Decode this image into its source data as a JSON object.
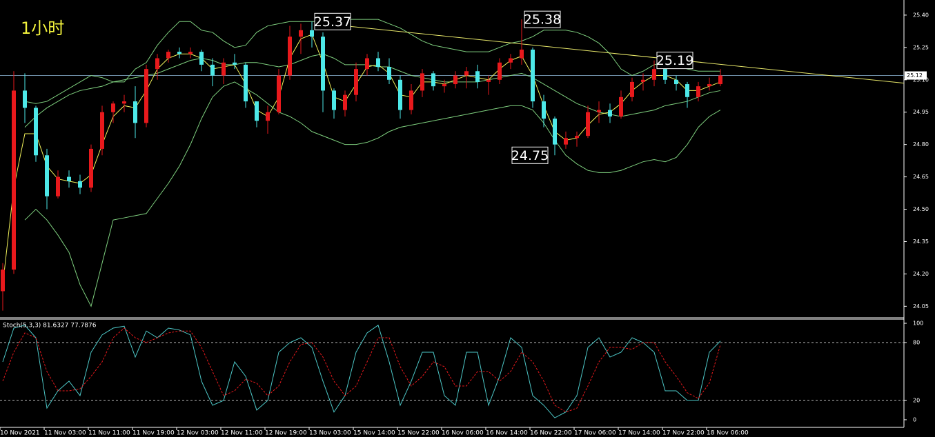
{
  "chart_data": {
    "type": "candlestick",
    "title": "1小时",
    "categories": [
      "10 Nov 2021",
      null,
      null,
      null,
      "11 Nov 03:00",
      null,
      null,
      null,
      "11 Nov 11:00",
      null,
      null,
      null,
      "11 Nov 19:00",
      null,
      null,
      null,
      "12 Nov 03:00",
      null,
      null,
      null,
      "12 Nov 11:00",
      null,
      null,
      null,
      "12 Nov 19:00",
      null,
      null,
      null,
      "13 Nov 03:00",
      null,
      null,
      null,
      "15 Nov 14:00",
      null,
      null,
      null,
      "15 Nov 22:00",
      null,
      null,
      null,
      "16 Nov 06:00",
      null,
      null,
      null,
      "16 Nov 14:00",
      null,
      null,
      null,
      "16 Nov 22:00",
      null,
      null,
      null,
      "17 Nov 06:00",
      null,
      null,
      null,
      "17 Nov 14:00",
      null,
      null,
      null,
      "17 Nov 22:00",
      null,
      null,
      null,
      "18 Nov 06:00",
      null
    ],
    "candles": [
      [
        24.12,
        24.25,
        24.03,
        24.22
      ],
      [
        24.22,
        25.14,
        24.2,
        25.05
      ],
      [
        25.05,
        25.13,
        24.9,
        24.97
      ],
      [
        24.97,
        24.98,
        24.72,
        24.75
      ],
      [
        24.75,
        24.78,
        24.5,
        24.56
      ],
      [
        24.56,
        24.68,
        24.55,
        24.65
      ],
      [
        24.65,
        24.68,
        24.6,
        24.63
      ],
      [
        24.63,
        24.66,
        24.57,
        24.6
      ],
      [
        24.6,
        24.8,
        24.58,
        24.78
      ],
      [
        24.78,
        24.98,
        24.75,
        24.95
      ],
      [
        24.95,
        25.0,
        24.9,
        24.99
      ],
      [
        24.99,
        25.03,
        24.95,
        25.0
      ],
      [
        25.0,
        25.07,
        24.83,
        24.9
      ],
      [
        24.9,
        25.17,
        24.88,
        25.15
      ],
      [
        25.15,
        25.22,
        25.1,
        25.2
      ],
      [
        25.2,
        25.24,
        25.18,
        25.23
      ],
      [
        25.23,
        25.25,
        25.2,
        25.22
      ],
      [
        25.22,
        25.25,
        25.2,
        25.23
      ],
      [
        25.23,
        25.24,
        25.14,
        25.17
      ],
      [
        25.17,
        25.2,
        25.07,
        25.12
      ],
      [
        25.12,
        25.2,
        25.08,
        25.18
      ],
      [
        25.18,
        25.22,
        25.15,
        25.17
      ],
      [
        25.17,
        25.18,
        24.97,
        25.0
      ],
      [
        25.0,
        25.0,
        24.88,
        24.91
      ],
      [
        24.91,
        24.98,
        24.85,
        24.95
      ],
      [
        24.95,
        25.15,
        24.94,
        25.12
      ],
      [
        25.12,
        25.35,
        25.1,
        25.3
      ],
      [
        25.3,
        25.36,
        25.22,
        25.33
      ],
      [
        25.33,
        25.37,
        25.25,
        25.3
      ],
      [
        25.3,
        25.32,
        24.95,
        25.05
      ],
      [
        25.05,
        25.06,
        24.92,
        24.96
      ],
      [
        24.96,
        25.05,
        24.93,
        25.03
      ],
      [
        25.03,
        25.18,
        25.0,
        25.15
      ],
      [
        25.15,
        25.22,
        25.12,
        25.2
      ],
      [
        25.2,
        25.23,
        25.14,
        25.16
      ],
      [
        25.16,
        25.2,
        25.08,
        25.1
      ],
      [
        25.1,
        25.12,
        24.92,
        24.96
      ],
      [
        24.96,
        25.08,
        24.94,
        25.05
      ],
      [
        25.05,
        25.15,
        25.02,
        25.13
      ],
      [
        25.13,
        25.14,
        25.05,
        25.07
      ],
      [
        25.07,
        25.1,
        25.04,
        25.08
      ],
      [
        25.08,
        25.14,
        25.06,
        25.12
      ],
      [
        25.12,
        25.16,
        25.06,
        25.14
      ],
      [
        25.14,
        25.17,
        25.06,
        25.09
      ],
      [
        25.09,
        25.12,
        25.03,
        25.1
      ],
      [
        25.1,
        25.2,
        25.08,
        25.18
      ],
      [
        25.18,
        25.22,
        25.15,
        25.2
      ],
      [
        25.2,
        25.38,
        25.17,
        25.24
      ],
      [
        25.24,
        25.25,
        24.97,
        25.0
      ],
      [
        25.0,
        25.03,
        24.88,
        24.92
      ],
      [
        24.92,
        24.93,
        24.75,
        24.8
      ],
      [
        24.8,
        24.86,
        24.78,
        24.83
      ],
      [
        24.83,
        24.86,
        24.79,
        24.84
      ],
      [
        24.84,
        24.98,
        24.83,
        24.95
      ],
      [
        24.95,
        25.0,
        24.9,
        24.96
      ],
      [
        24.96,
        24.99,
        24.9,
        24.93
      ],
      [
        24.93,
        25.05,
        24.92,
        25.02
      ],
      [
        25.02,
        25.11,
        25.0,
        25.09
      ],
      [
        25.09,
        25.13,
        25.05,
        25.1
      ],
      [
        25.1,
        25.19,
        25.07,
        25.15
      ],
      [
        25.15,
        25.19,
        25.08,
        25.1
      ],
      [
        25.1,
        25.12,
        25.05,
        25.08
      ],
      [
        25.08,
        25.09,
        24.97,
        25.02
      ],
      [
        25.02,
        25.09,
        25.0,
        25.07
      ],
      [
        25.07,
        25.11,
        25.05,
        25.08
      ],
      [
        25.08,
        25.15,
        25.07,
        25.12
      ]
    ],
    "up_color": "#e8191c",
    "down_color": "#4de8e8",
    "bands": {
      "color": "#7fd07f",
      "upper": [
        null,
        null,
        25.0,
        24.99,
        25.0,
        25.03,
        25.06,
        25.09,
        25.12,
        25.11,
        25.09,
        25.09,
        25.15,
        25.18,
        25.26,
        25.32,
        25.37,
        25.37,
        25.33,
        25.32,
        25.28,
        25.25,
        25.26,
        25.32,
        25.35,
        25.36,
        25.37,
        25.37,
        25.37,
        25.37,
        25.38,
        25.38,
        25.38,
        25.38,
        25.38,
        25.36,
        25.34,
        25.31,
        25.28,
        25.26,
        25.25,
        25.24,
        25.23,
        25.23,
        25.23,
        25.25,
        25.27,
        25.28,
        25.3,
        25.33,
        25.33,
        25.33,
        25.32,
        25.3,
        25.27,
        25.22,
        25.15,
        25.12,
        25.14,
        25.17,
        25.18,
        25.17,
        25.15,
        25.14,
        25.14,
        25.14
      ],
      "middle": [
        null,
        null,
        24.88,
        24.93,
        24.97,
        25.0,
        25.03,
        25.05,
        25.06,
        25.07,
        25.09,
        25.1,
        25.11,
        25.12,
        25.13,
        25.15,
        25.17,
        25.19,
        25.2,
        25.19,
        25.17,
        25.17,
        25.18,
        25.18,
        25.17,
        25.16,
        25.17,
        25.19,
        25.21,
        25.22,
        25.2,
        25.17,
        25.17,
        25.17,
        25.16,
        25.16,
        25.14,
        25.12,
        25.11,
        25.1,
        25.09,
        25.09,
        25.09,
        25.09,
        25.1,
        25.11,
        25.12,
        25.13,
        25.11,
        25.08,
        25.05,
        25.02,
        24.99,
        24.97,
        24.95,
        24.94,
        24.93,
        24.94,
        24.95,
        24.96,
        24.98,
        24.99,
        25.0,
        25.02,
        25.04,
        25.05
      ],
      "lower": [
        null,
        null,
        24.45,
        24.5,
        24.45,
        24.38,
        24.3,
        24.15,
        24.05,
        24.25,
        24.45,
        24.46,
        24.47,
        24.48,
        24.55,
        24.62,
        24.7,
        24.8,
        24.92,
        25.02,
        25.07,
        25.09,
        25.06,
        25.03,
        24.99,
        24.95,
        24.93,
        24.9,
        24.86,
        24.84,
        24.82,
        24.8,
        24.8,
        24.81,
        24.83,
        24.86,
        24.88,
        24.89,
        24.9,
        24.91,
        24.92,
        24.93,
        24.94,
        24.95,
        24.96,
        24.97,
        24.98,
        24.98,
        24.96,
        24.9,
        24.82,
        24.75,
        24.71,
        24.68,
        24.67,
        24.67,
        24.68,
        24.7,
        24.72,
        24.73,
        24.72,
        24.74,
        24.8,
        24.88,
        24.93,
        24.96
      ]
    },
    "ma": {
      "color": "#f2f25a",
      "values": [
        24.15,
        24.6,
        24.85,
        24.85,
        24.7,
        24.64,
        24.63,
        24.62,
        24.66,
        24.8,
        24.93,
        24.98,
        24.97,
        25.05,
        25.15,
        25.2,
        25.22,
        25.22,
        25.2,
        25.15,
        25.16,
        25.17,
        25.08,
        24.96,
        24.93,
        25.02,
        25.2,
        25.29,
        25.31,
        25.18,
        25.02,
        25.0,
        25.08,
        25.16,
        25.17,
        25.13,
        25.03,
        25.02,
        25.09,
        25.09,
        25.08,
        25.1,
        25.12,
        25.11,
        25.1,
        25.15,
        25.19,
        25.21,
        25.12,
        24.98,
        24.86,
        24.82,
        24.83,
        24.89,
        24.94,
        24.95,
        24.99,
        25.05,
        25.09,
        25.12,
        25.12,
        25.1,
        25.05,
        25.05,
        25.07,
        25.09
      ]
    },
    "trend_line": {
      "color": "#e8e86a",
      "x": [
        29.1,
        84.4
      ],
      "y": [
        25.36,
        25.07
      ]
    },
    "current_price": 25.12,
    "ylim": [
      24.0,
      25.47
    ],
    "yticks": [
      {
        "value": 24.05,
        "label": "24.05"
      },
      {
        "value": 24.2,
        "label": "24.20"
      },
      {
        "value": 24.35,
        "label": "24.35"
      },
      {
        "value": 24.5,
        "label": "24.50"
      },
      {
        "value": 24.65,
        "label": "24.65"
      },
      {
        "value": 24.8,
        "label": "24.80"
      },
      {
        "value": 24.95,
        "label": "24.95"
      },
      {
        "value": 25.1,
        "label": "25.10"
      },
      {
        "value": 25.25,
        "label": "25.25"
      },
      {
        "value": 25.4,
        "label": "25.40"
      }
    ],
    "annotations": [
      {
        "x": 28,
        "value": 25.37
      },
      {
        "x": 47,
        "value": 25.38
      },
      {
        "x": 59,
        "value": 25.19
      },
      {
        "x": 50,
        "value": 24.75
      }
    ],
    "stoch": {
      "label": "Stoch(5,3,3) 81.6327 77.7876",
      "ylim": [
        -7.9,
        104.3
      ],
      "yticks": [
        0,
        20,
        80,
        100
      ],
      "levels": [
        20,
        80
      ],
      "main": {
        "color": "#4dc8c8",
        "values": [
          60,
          95,
          98,
          85,
          12,
          30,
          40,
          25,
          70,
          88,
          95,
          97,
          65,
          92,
          85,
          95,
          93,
          88,
          40,
          15,
          20,
          60,
          45,
          10,
          20,
          70,
          80,
          85,
          75,
          40,
          8,
          25,
          70,
          90,
          98,
          60,
          15,
          40,
          70,
          70,
          25,
          15,
          70,
          70,
          15,
          45,
          85,
          75,
          25,
          15,
          2,
          8,
          25,
          75,
          85,
          65,
          70,
          85,
          80,
          70,
          30,
          30,
          20,
          20,
          70,
          81.6327
        ]
      },
      "signal": {
        "color": "#e8191c",
        "values": [
          40,
          70,
          90,
          85,
          50,
          30,
          30,
          32,
          45,
          60,
          85,
          95,
          85,
          80,
          85,
          90,
          92,
          92,
          75,
          50,
          25,
          30,
          42,
          38,
          25,
          35,
          60,
          78,
          80,
          65,
          40,
          25,
          35,
          60,
          85,
          85,
          55,
          35,
          45,
          60,
          55,
          35,
          35,
          50,
          50,
          40,
          50,
          70,
          60,
          40,
          15,
          8,
          12,
          35,
          60,
          75,
          75,
          73,
          80,
          80,
          60,
          45,
          28,
          22,
          38,
          77.7876
        ]
      }
    }
  }
}
